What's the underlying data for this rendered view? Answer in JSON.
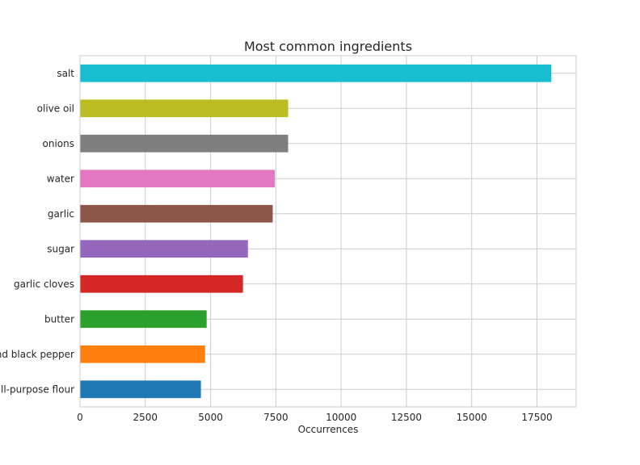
{
  "chart_data": {
    "type": "bar",
    "orientation": "horizontal",
    "title": "Most common ingredients",
    "xlabel": "Occurrences",
    "ylabel": "",
    "xlim": [
      0,
      19000
    ],
    "xticks": [
      0,
      2500,
      5000,
      7500,
      10000,
      12500,
      15000,
      17500
    ],
    "grid": true,
    "categories": [
      "salt",
      "olive oil",
      "onions",
      "water",
      "garlic",
      "sugar",
      "garlic cloves",
      "butter",
      "ground black pepper",
      "all-purpose flour"
    ],
    "values": [
      18050,
      7970,
      7970,
      7460,
      7380,
      6430,
      6240,
      4850,
      4790,
      4630
    ],
    "colors": [
      "#17becf",
      "#bcbd22",
      "#7f7f7f",
      "#e377c2",
      "#8c564b",
      "#9467bd",
      "#d62728",
      "#2ca02c",
      "#ff7f0e",
      "#1f77b4"
    ]
  }
}
